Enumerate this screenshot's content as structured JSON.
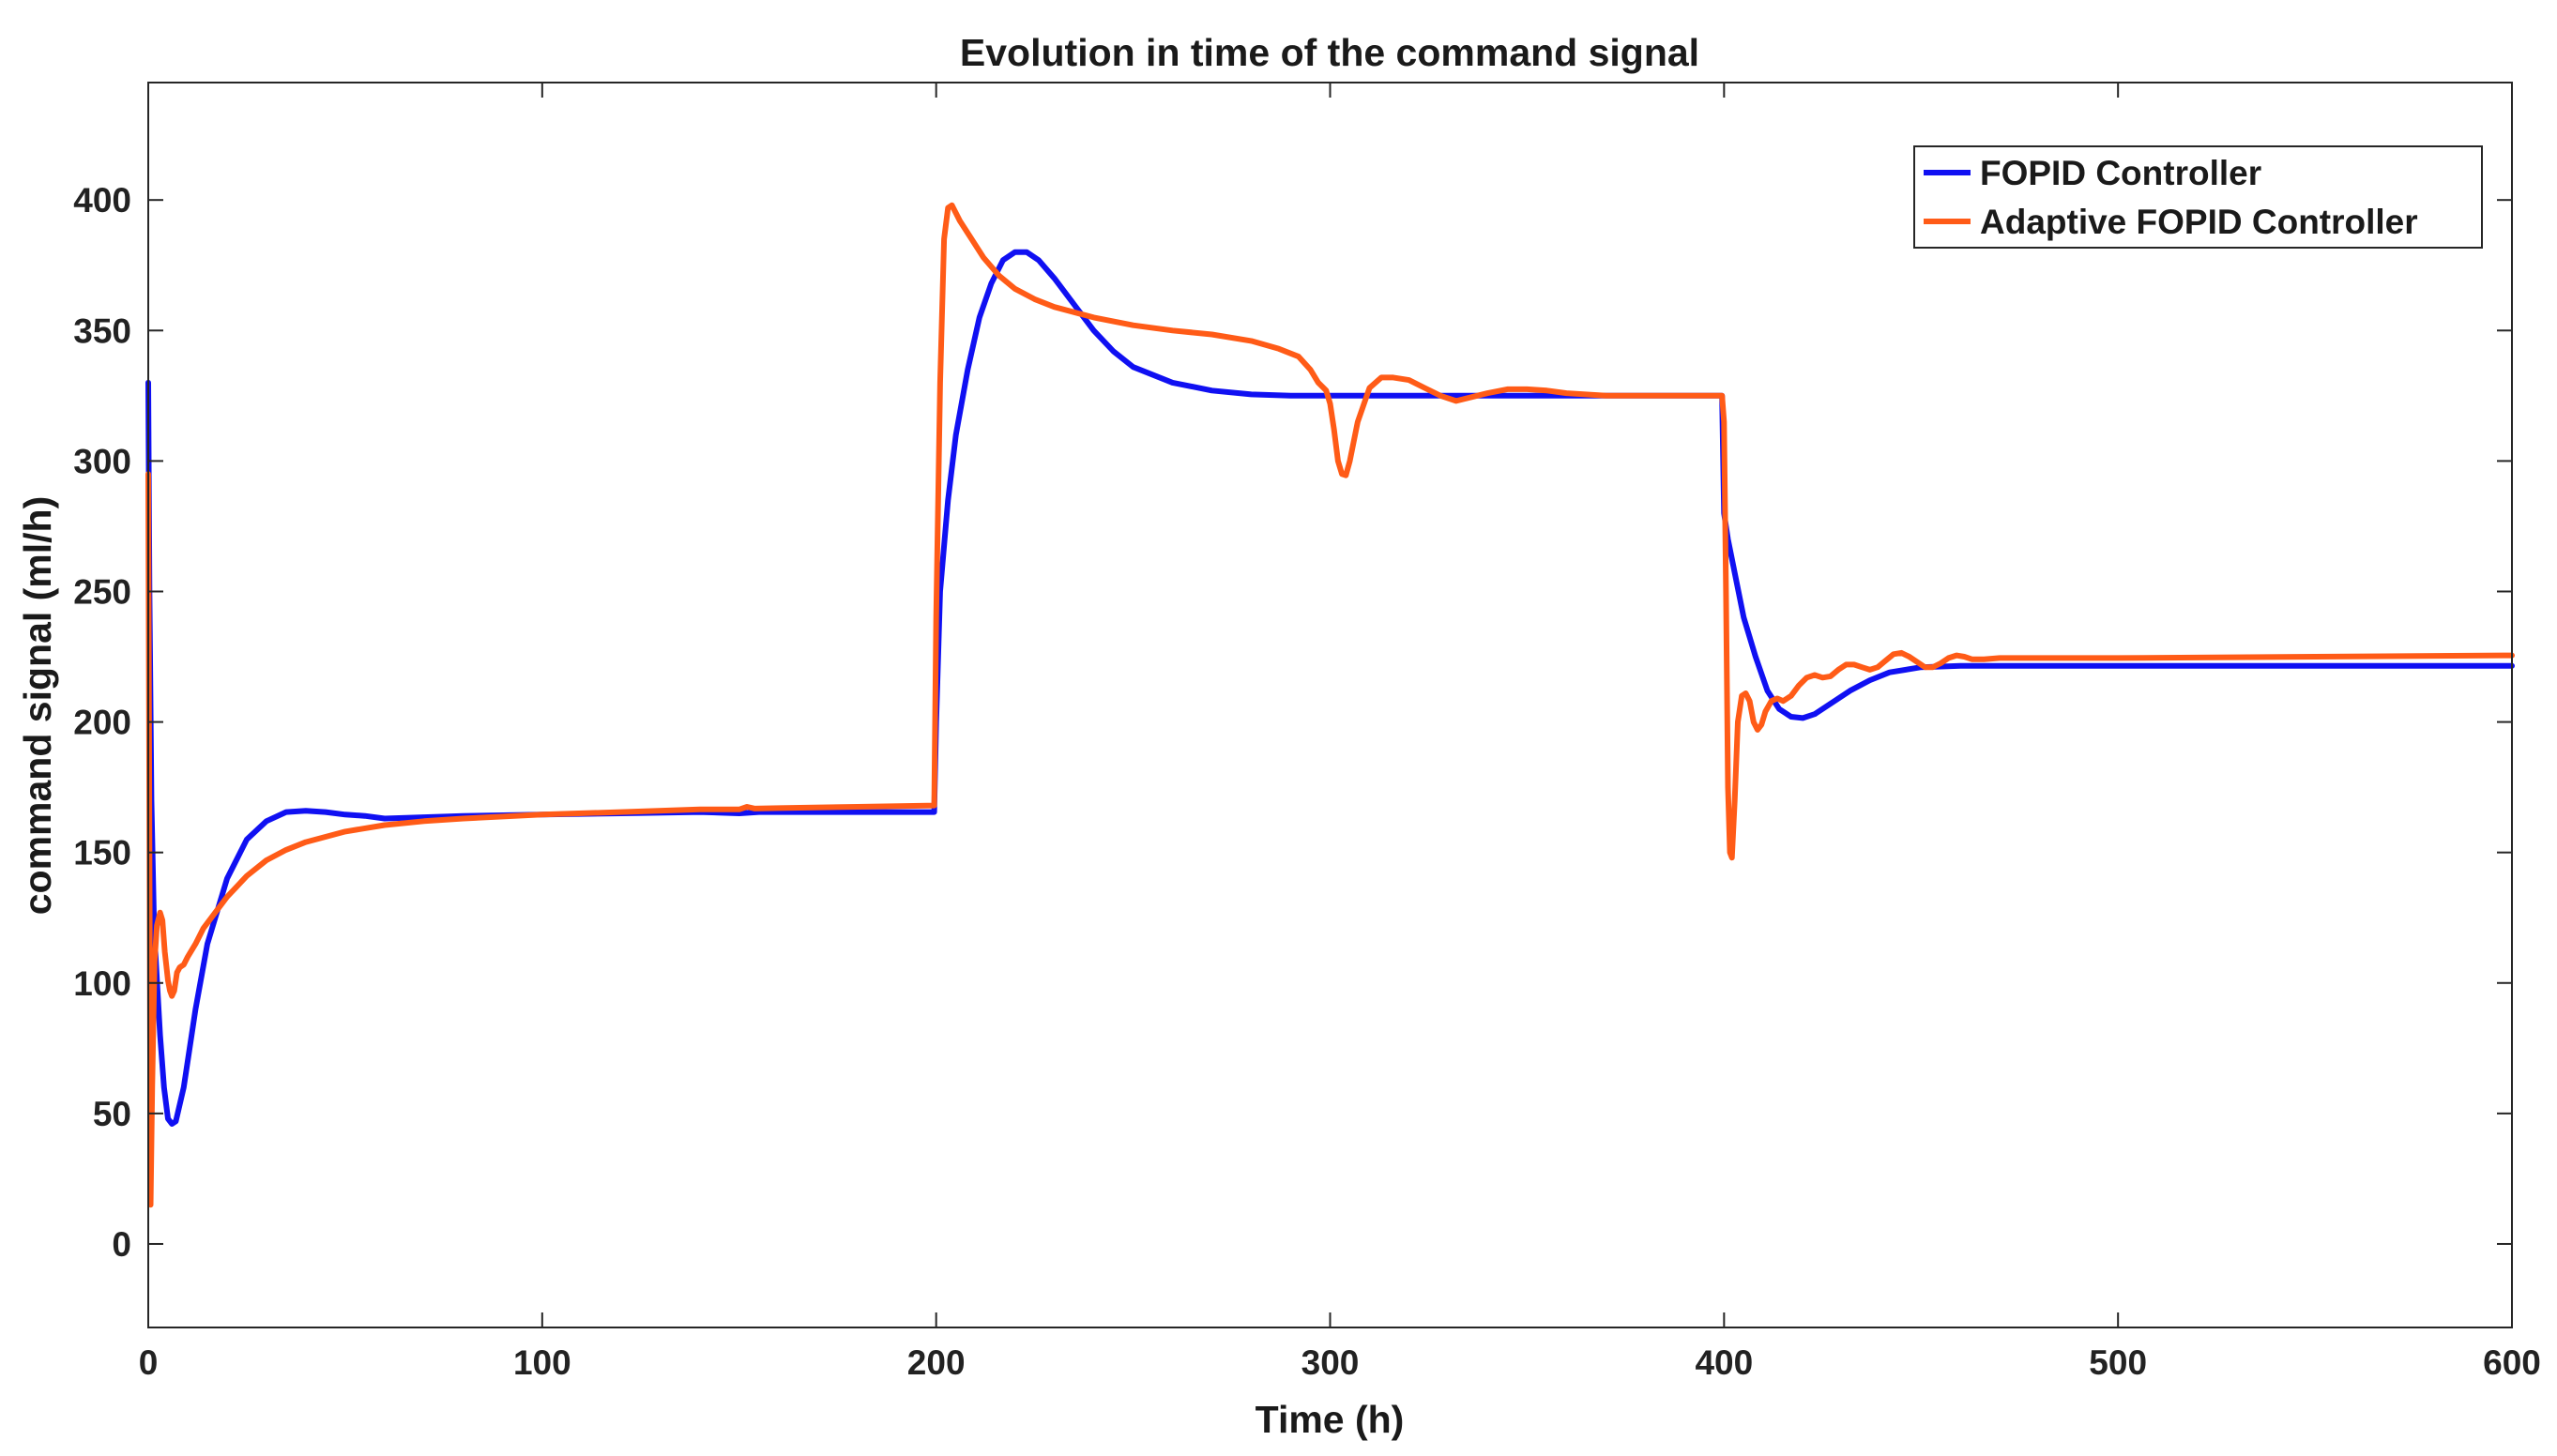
{
  "chart_data": {
    "type": "line",
    "title": "Evolution in time of the command signal",
    "xlabel": "Time (h)",
    "ylabel": "command signal (ml/h)",
    "xlim": [
      0,
      600
    ],
    "ylim": [
      -32,
      445
    ],
    "xticks": [
      0,
      100,
      200,
      300,
      400,
      500,
      600
    ],
    "yticks": [
      0,
      50,
      100,
      150,
      200,
      250,
      300,
      350,
      400
    ],
    "grid": false,
    "legend_position": "top-right",
    "series": [
      {
        "name": "FOPID Controller",
        "color": "#1010f2",
        "points": [
          [
            0,
            330
          ],
          [
            0.3,
            250
          ],
          [
            0.8,
            170
          ],
          [
            1.5,
            120
          ],
          [
            3,
            80
          ],
          [
            4,
            60
          ],
          [
            5,
            48
          ],
          [
            6,
            46
          ],
          [
            7,
            47
          ],
          [
            9,
            60
          ],
          [
            12,
            90
          ],
          [
            15,
            115
          ],
          [
            20,
            140
          ],
          [
            25,
            155
          ],
          [
            30,
            162
          ],
          [
            35,
            165.5
          ],
          [
            40,
            166
          ],
          [
            45,
            165.5
          ],
          [
            50,
            164.5
          ],
          [
            55,
            164
          ],
          [
            60,
            163
          ],
          [
            70,
            163.5
          ],
          [
            80,
            164
          ],
          [
            100,
            164.5
          ],
          [
            120,
            165
          ],
          [
            140,
            165.5
          ],
          [
            150,
            165
          ],
          [
            155,
            165.5
          ],
          [
            160,
            165.5
          ],
          [
            180,
            165.5
          ],
          [
            199.5,
            165.5
          ],
          [
            200,
            200
          ],
          [
            201,
            250
          ],
          [
            203,
            285
          ],
          [
            205,
            310
          ],
          [
            208,
            335
          ],
          [
            211,
            355
          ],
          [
            214,
            368
          ],
          [
            217,
            377
          ],
          [
            220,
            380
          ],
          [
            223,
            380
          ],
          [
            226,
            377
          ],
          [
            230,
            370
          ],
          [
            235,
            360
          ],
          [
            240,
            350
          ],
          [
            245,
            342
          ],
          [
            250,
            336
          ],
          [
            260,
            330
          ],
          [
            270,
            327
          ],
          [
            280,
            325.5
          ],
          [
            290,
            325
          ],
          [
            300,
            325
          ],
          [
            320,
            325
          ],
          [
            350,
            325
          ],
          [
            380,
            325
          ],
          [
            399.5,
            325
          ],
          [
            400,
            280
          ],
          [
            401,
            270
          ],
          [
            403,
            255
          ],
          [
            405,
            240
          ],
          [
            408,
            225
          ],
          [
            411,
            212
          ],
          [
            414,
            205
          ],
          [
            417,
            202
          ],
          [
            420,
            201.5
          ],
          [
            423,
            203
          ],
          [
            427,
            207
          ],
          [
            432,
            212
          ],
          [
            437,
            216
          ],
          [
            442,
            219
          ],
          [
            450,
            221
          ],
          [
            460,
            221.5
          ],
          [
            480,
            221.5
          ],
          [
            500,
            221.5
          ],
          [
            550,
            221.5
          ],
          [
            600,
            221.5
          ]
        ]
      },
      {
        "name": "Adaptive FOPID Controller",
        "color": "#ff5b17",
        "points": [
          [
            0,
            295
          ],
          [
            0.3,
            150
          ],
          [
            0.6,
            15
          ],
          [
            1,
            60
          ],
          [
            1.6,
            108
          ],
          [
            2.2,
            122
          ],
          [
            3,
            127
          ],
          [
            3.6,
            124
          ],
          [
            4.2,
            112
          ],
          [
            5,
            101
          ],
          [
            5.5,
            97
          ],
          [
            6,
            95
          ],
          [
            6.6,
            97
          ],
          [
            7.3,
            104
          ],
          [
            8,
            106
          ],
          [
            9,
            107
          ],
          [
            10,
            110
          ],
          [
            12,
            115
          ],
          [
            14,
            121
          ],
          [
            17,
            127
          ],
          [
            20,
            133
          ],
          [
            25,
            141
          ],
          [
            30,
            147
          ],
          [
            35,
            151
          ],
          [
            40,
            154
          ],
          [
            45,
            156
          ],
          [
            50,
            158
          ],
          [
            60,
            160.5
          ],
          [
            70,
            162
          ],
          [
            80,
            163
          ],
          [
            100,
            164.5
          ],
          [
            120,
            165.5
          ],
          [
            140,
            166.5
          ],
          [
            150,
            166.5
          ],
          [
            152,
            167.5
          ],
          [
            154,
            166.8
          ],
          [
            160,
            167
          ],
          [
            180,
            167.5
          ],
          [
            199.5,
            168
          ],
          [
            200,
            240
          ],
          [
            201,
            330
          ],
          [
            202,
            385
          ],
          [
            203,
            397
          ],
          [
            204,
            398
          ],
          [
            206,
            392
          ],
          [
            209,
            385
          ],
          [
            212,
            378
          ],
          [
            216,
            371
          ],
          [
            220,
            366
          ],
          [
            225,
            362
          ],
          [
            230,
            359
          ],
          [
            240,
            355
          ],
          [
            250,
            352
          ],
          [
            260,
            350
          ],
          [
            270,
            348.5
          ],
          [
            280,
            346
          ],
          [
            287,
            343
          ],
          [
            292,
            340
          ],
          [
            295,
            335
          ],
          [
            297,
            330
          ],
          [
            299,
            327
          ],
          [
            300,
            322
          ],
          [
            301,
            312
          ],
          [
            302,
            300
          ],
          [
            303,
            295
          ],
          [
            304,
            294.5
          ],
          [
            305,
            300
          ],
          [
            307,
            315
          ],
          [
            310,
            328
          ],
          [
            313,
            332
          ],
          [
            316,
            332
          ],
          [
            320,
            331
          ],
          [
            324,
            328
          ],
          [
            328,
            325
          ],
          [
            332,
            323
          ],
          [
            336,
            324.5
          ],
          [
            340,
            326
          ],
          [
            345,
            327.5
          ],
          [
            350,
            327.5
          ],
          [
            355,
            327
          ],
          [
            360,
            326
          ],
          [
            370,
            325
          ],
          [
            380,
            325
          ],
          [
            399.5,
            325
          ],
          [
            400,
            315
          ],
          [
            400.5,
            250
          ],
          [
            401,
            175
          ],
          [
            401.5,
            150
          ],
          [
            402,
            148
          ],
          [
            402.7,
            170
          ],
          [
            403.5,
            200
          ],
          [
            404.5,
            210
          ],
          [
            405.5,
            211
          ],
          [
            406.5,
            208
          ],
          [
            407.5,
            200
          ],
          [
            408.5,
            197
          ],
          [
            409.5,
            199
          ],
          [
            410.5,
            204
          ],
          [
            412,
            208
          ],
          [
            413.5,
            209
          ],
          [
            415,
            208
          ],
          [
            417,
            210
          ],
          [
            419,
            214
          ],
          [
            421,
            217
          ],
          [
            423,
            218
          ],
          [
            425,
            217
          ],
          [
            427,
            217.5
          ],
          [
            429,
            220
          ],
          [
            431,
            222
          ],
          [
            433,
            222
          ],
          [
            435,
            221
          ],
          [
            437,
            220
          ],
          [
            439,
            221
          ],
          [
            441,
            223.5
          ],
          [
            443,
            226
          ],
          [
            445,
            226.5
          ],
          [
            447,
            225
          ],
          [
            449,
            223
          ],
          [
            451,
            221
          ],
          [
            453,
            221
          ],
          [
            455,
            222.5
          ],
          [
            457,
            224.5
          ],
          [
            459,
            225.5
          ],
          [
            461,
            225
          ],
          [
            463,
            224
          ],
          [
            466,
            224
          ],
          [
            470,
            224.5
          ],
          [
            480,
            224.5
          ],
          [
            500,
            224.5
          ],
          [
            550,
            225
          ],
          [
            600,
            225.5
          ]
        ]
      }
    ]
  }
}
